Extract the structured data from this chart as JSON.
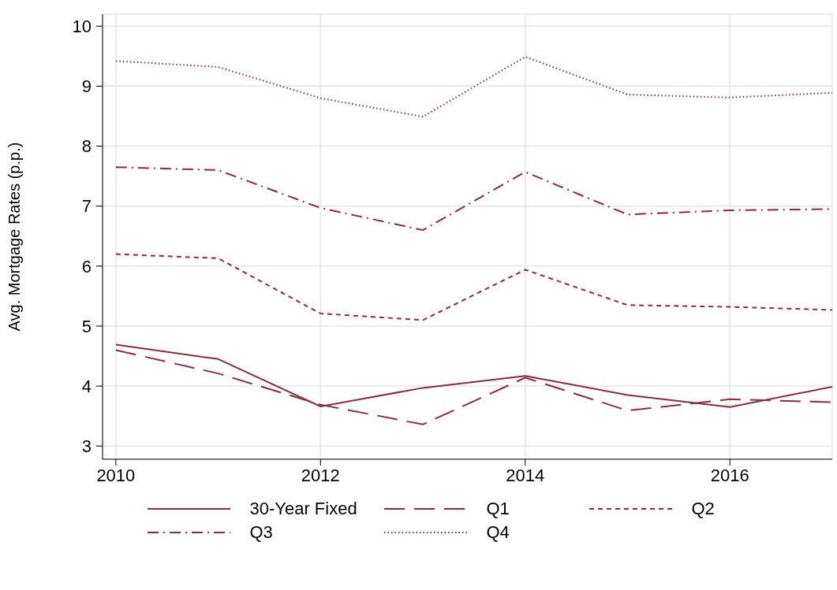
{
  "chart_data": {
    "type": "line",
    "ylabel": "Avg. Mortgage Rates (p.p.)",
    "x": [
      2010,
      2011,
      2012,
      2013,
      2014,
      2015,
      2016,
      2017
    ],
    "series": [
      {
        "name": "30-Year Fixed",
        "color": "#8c2d3b",
        "line_style": "solid",
        "values": [
          4.69,
          4.45,
          3.66,
          3.97,
          4.17,
          3.85,
          3.65,
          3.99
        ]
      },
      {
        "name": "Q1",
        "color": "#8c2d3b",
        "line_style": "longdash",
        "values": [
          4.6,
          4.21,
          3.69,
          3.36,
          4.14,
          3.59,
          3.78,
          3.73
        ]
      },
      {
        "name": "Q2",
        "color": "#8c2d3b",
        "line_style": "dashed",
        "values": [
          6.2,
          6.13,
          5.21,
          5.1,
          5.94,
          5.35,
          5.32,
          5.27
        ]
      },
      {
        "name": "Q3",
        "color": "#8c2d3b",
        "line_style": "dashdot",
        "values": [
          7.65,
          7.6,
          6.97,
          6.6,
          7.57,
          6.86,
          6.93,
          6.95
        ]
      },
      {
        "name": "Q4",
        "color": "#8c2d3b",
        "line_style": "dotted",
        "values": [
          9.42,
          9.32,
          8.8,
          8.49,
          9.49,
          8.86,
          8.81,
          8.89
        ]
      }
    ],
    "xlim": [
      2009.87,
      2017
    ],
    "xticks": [
      2010,
      2012,
      2014,
      2016
    ],
    "ylim": [
      2.78,
      10.2
    ],
    "yticks": [
      3,
      4,
      5,
      6,
      7,
      8,
      9,
      10
    ],
    "grid": true,
    "legend": "bottom",
    "marker": "none"
  }
}
